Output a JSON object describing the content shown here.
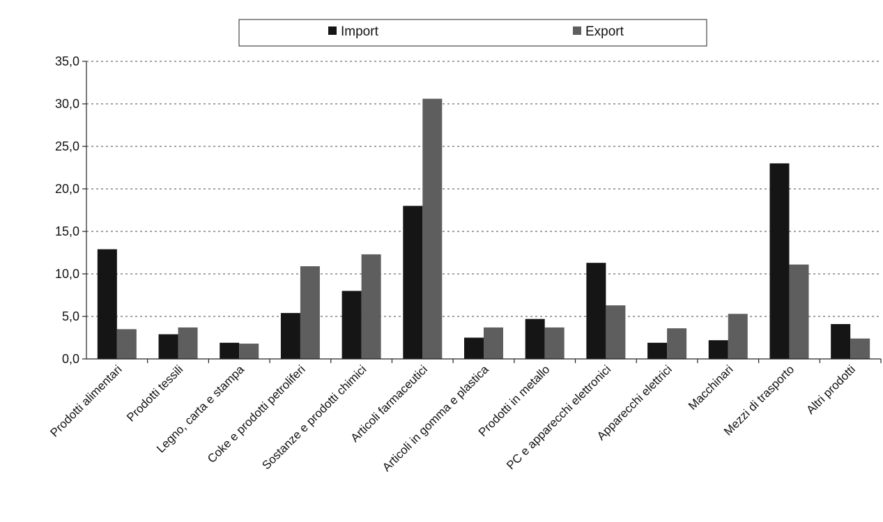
{
  "chart_data": {
    "type": "bar",
    "categories": [
      "Prodotti alimentari",
      "Prodotti tessili",
      "Legno, carta e stampa",
      "Coke e prodotti petroliferi",
      "Sostanze e prodotti chimici",
      "Articoli farmaceutici",
      "Articoli in gomma e plastica",
      "Prodotti in metallo",
      "PC e apparecchi elettronici",
      "Apparecchi elettrici",
      "Macchinari",
      "Mezzi di trasporto",
      "Altri prodotti"
    ],
    "series": [
      {
        "name": "Import",
        "color": "#151515",
        "values": [
          12.9,
          2.9,
          1.9,
          5.4,
          8.0,
          18.0,
          2.5,
          4.7,
          11.3,
          1.9,
          2.2,
          23.0,
          4.1
        ]
      },
      {
        "name": "Export",
        "color": "#5e5e5e",
        "values": [
          3.5,
          3.7,
          1.8,
          10.9,
          12.3,
          30.6,
          3.7,
          3.7,
          6.3,
          3.6,
          5.3,
          11.1,
          2.4
        ]
      }
    ],
    "yticks": [
      "0,0",
      "5,0",
      "10,0",
      "15,0",
      "20,0",
      "25,0",
      "30,0",
      "35,0"
    ],
    "ylim": [
      0,
      35
    ],
    "grid": true,
    "legend_position": "top-center"
  }
}
